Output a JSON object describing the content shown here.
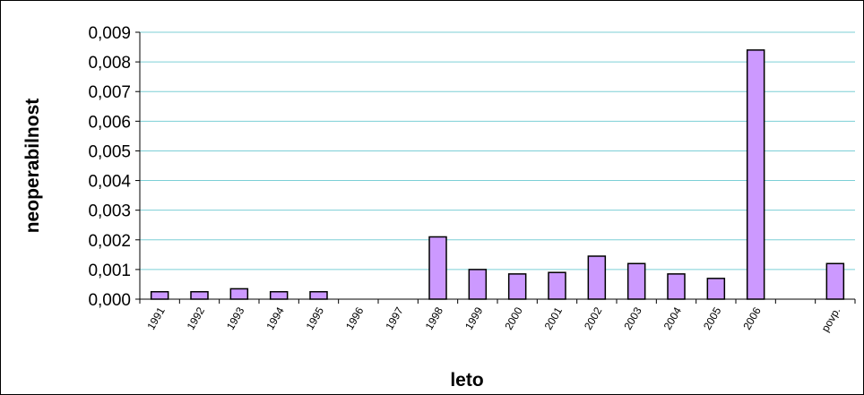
{
  "chart_data": {
    "type": "bar",
    "xlabel": "leto",
    "ylabel": "neoperabilnost",
    "ylim": [
      0,
      0.009
    ],
    "yticks": [
      "0,000",
      "0,001",
      "0,002",
      "0,003",
      "0,004",
      "0,005",
      "0,006",
      "0,007",
      "0,008",
      "0,009"
    ],
    "categories": [
      "1991",
      "1992",
      "1993",
      "1994",
      "1995",
      "1996",
      "1997",
      "1998",
      "1999",
      "2000",
      "2001",
      "2002",
      "2003",
      "2004",
      "2005",
      "2006",
      "",
      "povp."
    ],
    "values": [
      0.00025,
      0.00025,
      0.00035,
      0.00025,
      0.00025,
      0,
      0,
      0.0021,
      0.001,
      0.00085,
      0.0009,
      0.00145,
      0.0012,
      0.00085,
      0.0007,
      0.0084,
      null,
      0.0012
    ],
    "grid": true,
    "colors": {
      "bar": "#cc99ff",
      "grid": "#7ccfd6",
      "bar_stroke": "#000000"
    }
  }
}
